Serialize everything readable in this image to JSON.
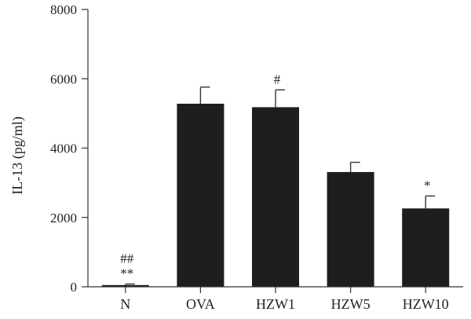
{
  "chart_data": {
    "type": "bar",
    "categories": [
      "N",
      "OVA",
      "HZW1",
      "HZW5",
      "HZW10"
    ],
    "values": [
      50,
      5280,
      5180,
      3310,
      2260
    ],
    "error": [
      30,
      480,
      500,
      280,
      360
    ],
    "annotations": [
      "##\n**",
      "",
      "#",
      "",
      "*"
    ],
    "ylabel": "IL-13 (pg/ml)",
    "xlabel": "",
    "title": "",
    "ylim": [
      0,
      8000
    ],
    "yticks": [
      0,
      2000,
      4000,
      6000,
      8000
    ],
    "grid": false,
    "bar_color": "#1e1e1e",
    "axis_color": "#333333"
  }
}
